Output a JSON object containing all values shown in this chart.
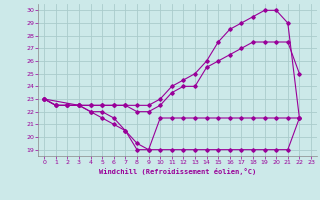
{
  "xlabel": "Windchill (Refroidissement éolien,°C)",
  "background_color": "#cce9e9",
  "grid_color": "#aacccc",
  "line_color": "#990099",
  "xlim": [
    -0.5,
    23.5
  ],
  "ylim": [
    18.5,
    30.5
  ],
  "yticks": [
    19,
    20,
    21,
    22,
    23,
    24,
    25,
    26,
    27,
    28,
    29,
    30
  ],
  "xticks": [
    0,
    1,
    2,
    3,
    4,
    5,
    6,
    7,
    8,
    9,
    10,
    11,
    12,
    13,
    14,
    15,
    16,
    17,
    18,
    19,
    20,
    21,
    22,
    23
  ],
  "curve1_x": [
    0,
    1,
    2,
    3,
    4,
    5,
    6,
    7,
    8,
    9,
    10,
    11,
    12,
    13,
    14,
    15,
    16,
    17,
    18,
    19,
    20,
    21,
    22
  ],
  "curve1_y": [
    23,
    22.5,
    22.5,
    22.5,
    22,
    21.5,
    21,
    20.5,
    19.5,
    19,
    19,
    19,
    19,
    19,
    19,
    19,
    19,
    19,
    19,
    19,
    19,
    19,
    21.5
  ],
  "curve2_x": [
    0,
    1,
    2,
    3,
    4,
    5,
    6,
    7,
    8,
    9,
    10,
    11,
    12,
    13,
    14,
    15,
    16,
    17,
    18,
    19,
    20,
    21,
    22
  ],
  "curve2_y": [
    23,
    22.5,
    22.5,
    22.5,
    22.5,
    22.5,
    22.5,
    22.5,
    22.5,
    22.5,
    23,
    24,
    24.5,
    25,
    26,
    27.5,
    28.5,
    29,
    29.5,
    30,
    30,
    29,
    21.5
  ],
  "curve3_x": [
    0,
    1,
    2,
    3,
    4,
    5,
    6,
    7,
    8,
    9,
    10,
    11,
    12,
    13,
    14,
    15,
    16,
    17,
    18,
    19,
    20,
    21,
    22
  ],
  "curve3_y": [
    23,
    22.5,
    22.5,
    22.5,
    22.5,
    22.5,
    22.5,
    22.5,
    22,
    22,
    22.5,
    23.5,
    24,
    24,
    25.5,
    26,
    26.5,
    27,
    27.5,
    27.5,
    27.5,
    27.5,
    25
  ],
  "curve4_x": [
    0,
    3,
    4,
    5,
    6,
    7,
    8,
    9,
    10,
    11,
    12,
    13,
    14,
    15,
    16,
    17,
    18,
    19,
    20,
    21,
    22
  ],
  "curve4_y": [
    23,
    22.5,
    22,
    22,
    21.5,
    20.5,
    19,
    19,
    21.5,
    21.5,
    21.5,
    21.5,
    21.5,
    21.5,
    21.5,
    21.5,
    21.5,
    21.5,
    21.5,
    21.5,
    21.5
  ]
}
